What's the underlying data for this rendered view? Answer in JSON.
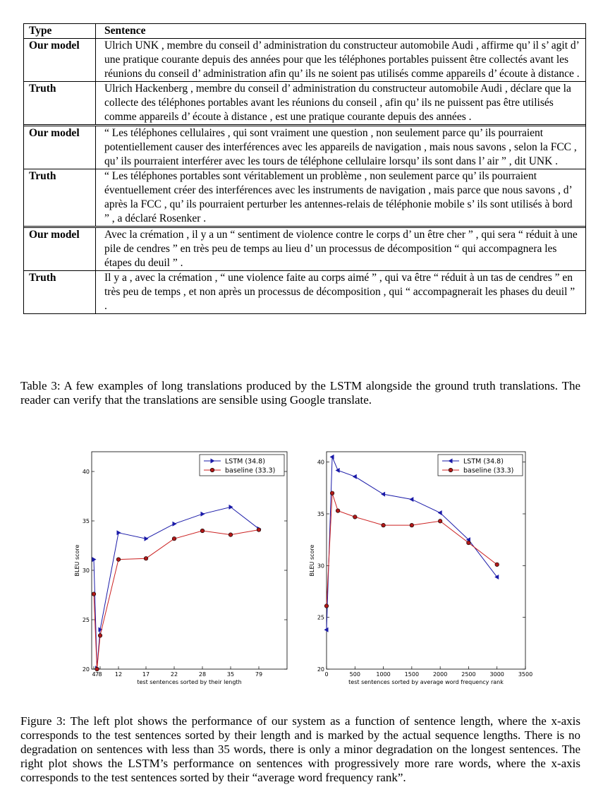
{
  "table": {
    "header": {
      "type": "Type",
      "sentence": "Sentence"
    },
    "rows": [
      {
        "type": "Our model",
        "sentence": "Ulrich UNK , membre du conseil d’ administration du constructeur automobile Audi , affirme qu’ il s’ agit d’ une pratique courante depuis des années pour que les téléphones portables puissent être collectés avant les réunions du conseil d’ administration afin qu’ ils ne soient pas utilisés comme appareils d’ écoute à distance ."
      },
      {
        "type": "Truth",
        "sentence": "Ulrich Hackenberg , membre du conseil d’ administration du constructeur automobile Audi , déclare que la collecte des téléphones portables avant les réunions du conseil , afin qu’ ils ne puissent pas être utilisés comme appareils d’ écoute à distance , est une pratique courante depuis des années ."
      },
      {
        "type": "Our model",
        "sentence": "“ Les téléphones cellulaires , qui sont vraiment une question , non seulement parce qu’ ils pourraient potentiellement causer des interférences avec les appareils de navigation , mais nous savons , selon la FCC , qu’ ils pourraient interférer avec les tours de téléphone cellulaire lorsqu’ ils sont dans l’ air ” , dit UNK ."
      },
      {
        "type": "Truth",
        "sentence": "“ Les téléphones portables sont véritablement un problème , non seulement parce qu’ ils pourraient éventuellement créer des interférences avec les instruments de navigation , mais parce que nous savons , d’ après la FCC , qu’ ils pourraient perturber les antennes-relais de téléphonie mobile s’ ils sont utilisés à bord ” , a déclaré Rosenker ."
      },
      {
        "type": "Our model",
        "sentence": "Avec la crémation , il y a un “ sentiment de violence contre le corps d’ un être cher ” , qui sera “ réduit à une pile de cendres ” en très peu de temps au lieu d’ un processus de décomposition “ qui accompagnera les étapes du deuil ” ."
      },
      {
        "type": "Truth",
        "sentence": "Il y a , avec la crémation , “ une violence faite au corps aimé ” , qui va être “ réduit à un tas de cendres ” en très peu de temps , et non après un processus de décomposition , qui “ accompagnerait les phases du deuil ” ."
      }
    ]
  },
  "table_caption": "Table 3: A few examples of long translations produced by the LSTM alongside the ground truth translations. The reader can verify that the translations are sensible using Google translate.",
  "figure_caption": "Figure 3: The left plot shows the performance of our system as a function of sentence length, where the x-axis corresponds to the test sentences sorted by their length and is marked by the actual sequence lengths. There is no degradation on sentences with less than 35 words, there is only a minor degradation on the longest sentences. The right plot shows the LSTM’s performance on sentences with progressively more rare words, where the x-axis corresponds to the test sentences sorted by their “average word frequency rank”.",
  "colors": {
    "lstm": "#1a1aa8",
    "baseline": "#cc2222",
    "baseline_fill": "#b01818"
  },
  "chart_data": [
    {
      "type": "line",
      "xlabel": "test sentences sorted by their length",
      "ylabel": "BLEU score",
      "ylim": [
        20,
        42
      ],
      "yticks": [
        20,
        25,
        30,
        35,
        40
      ],
      "xtick_labels": [
        "4",
        "7",
        "8",
        "12",
        "17",
        "22",
        "28",
        "35",
        "79"
      ],
      "grid": false,
      "legend_position": "top-right",
      "series": [
        {
          "name": "LSTM (34.8)",
          "marker": "triangle-right",
          "values": [
            31.1,
            20.1,
            24.0,
            33.8,
            33.2,
            34.7,
            35.7,
            36.4,
            34.2
          ]
        },
        {
          "name": "baseline (33.3)",
          "marker": "circle",
          "values": [
            27.6,
            20.0,
            23.4,
            31.1,
            31.2,
            33.2,
            34.0,
            33.6,
            34.1
          ]
        }
      ]
    },
    {
      "type": "line",
      "xlabel": "test sentences sorted by average word frequency rank",
      "ylabel": "BLEU score",
      "xlim": [
        0,
        3500
      ],
      "ylim": [
        20,
        41
      ],
      "xticks": [
        0,
        500,
        1000,
        1500,
        2000,
        2500,
        3000,
        3500
      ],
      "yticks": [
        20,
        25,
        30,
        35,
        40
      ],
      "grid": false,
      "legend_position": "top-right",
      "series": [
        {
          "name": "LSTM (34.8)",
          "marker": "triangle-left",
          "x": [
            0,
            100,
            200,
            500,
            1000,
            1500,
            2000,
            2500,
            3000
          ],
          "y": [
            23.8,
            40.5,
            39.2,
            38.6,
            36.9,
            36.4,
            35.1,
            32.5,
            28.9
          ]
        },
        {
          "name": "baseline (33.3)",
          "marker": "circle",
          "x": [
            0,
            100,
            200,
            500,
            1000,
            1500,
            2000,
            2500,
            3000
          ],
          "y": [
            26.1,
            37.0,
            35.3,
            34.7,
            33.9,
            33.9,
            34.3,
            32.2,
            30.1
          ]
        }
      ]
    }
  ]
}
